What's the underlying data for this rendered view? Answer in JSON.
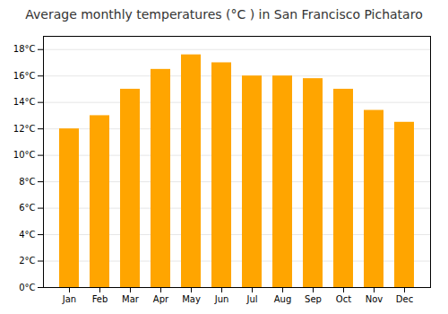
{
  "chart_data": {
    "type": "bar",
    "title": "Average monthly temperatures (°C ) in San Francisco Pichataro",
    "categories": [
      "Jan",
      "Feb",
      "Mar",
      "Apr",
      "May",
      "Jun",
      "Jul",
      "Aug",
      "Sep",
      "Oct",
      "Nov",
      "Dec"
    ],
    "values": [
      12.0,
      13.0,
      15.0,
      16.5,
      17.6,
      17.0,
      16.0,
      16.0,
      15.8,
      15.0,
      13.4,
      12.5
    ],
    "color": "#FFA500",
    "ylim": [
      0,
      19
    ],
    "yticks": [
      {
        "value": 0,
        "label": "0°C"
      },
      {
        "value": 2,
        "label": "2°C"
      },
      {
        "value": 4,
        "label": "4°C"
      },
      {
        "value": 6,
        "label": "6°C"
      },
      {
        "value": 8,
        "label": "8°C"
      },
      {
        "value": 10,
        "label": "10°C"
      },
      {
        "value": 12,
        "label": "12°C"
      },
      {
        "value": 14,
        "label": "14°C"
      },
      {
        "value": 16,
        "label": "16°C"
      },
      {
        "value": 18,
        "label": "18°C"
      }
    ],
    "grid": true
  }
}
